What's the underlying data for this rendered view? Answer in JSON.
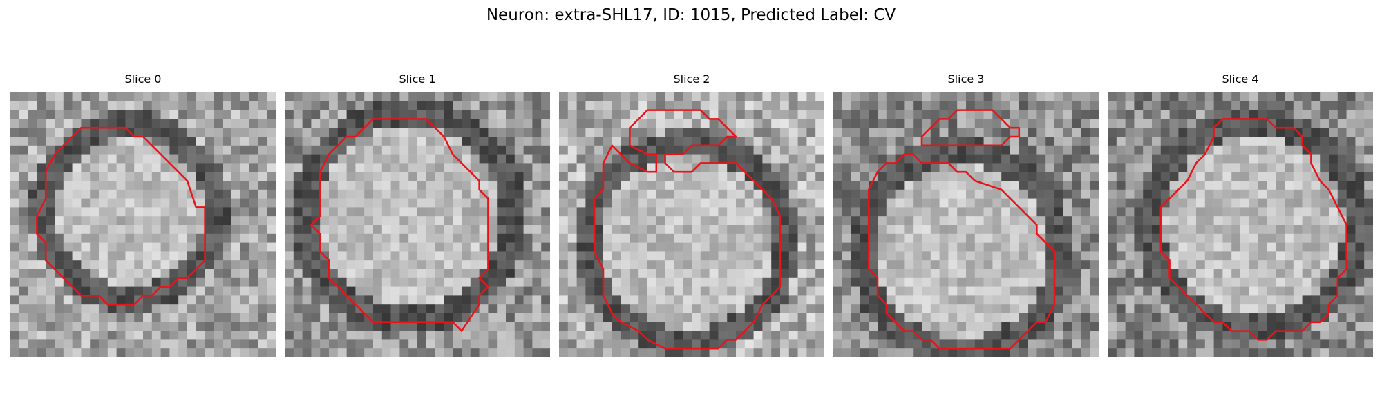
{
  "figure": {
    "title": "Neuron: extra-SHL17, ID: 1015, Predicted Label: CV"
  },
  "contour_color": "#e8141a",
  "panels": [
    {
      "title": "Slice 0"
    },
    {
      "title": "Slice 1"
    },
    {
      "title": "Slice 2"
    },
    {
      "title": "Slice 3"
    },
    {
      "title": "Slice 4"
    }
  ]
}
